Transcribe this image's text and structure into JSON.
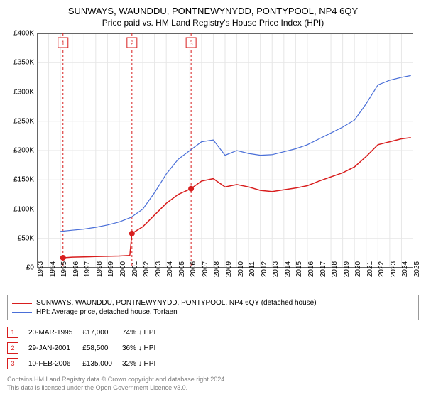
{
  "title": "SUNWAYS, WAUNDDU, PONTNEWYNYDD, PONTYPOOL, NP4 6QY",
  "subtitle": "Price paid vs. HM Land Registry's House Price Index (HPI)",
  "chart": {
    "type": "line",
    "background_color": "#ffffff",
    "grid_color": "#e6e6e6",
    "axis_color": "#666666",
    "y": {
      "min": 0,
      "max": 400000,
      "step": 50000,
      "ticks": [
        "£0",
        "£50K",
        "£100K",
        "£150K",
        "£200K",
        "£250K",
        "£300K",
        "£350K",
        "£400K"
      ],
      "label_fontsize": 10
    },
    "x": {
      "min": 1993,
      "max": 2025,
      "step": 1,
      "ticks": [
        "1993",
        "1994",
        "1995",
        "1996",
        "1997",
        "1998",
        "1999",
        "2000",
        "2001",
        "2002",
        "2003",
        "2004",
        "2005",
        "2006",
        "2007",
        "2008",
        "2009",
        "2010",
        "2011",
        "2012",
        "2013",
        "2014",
        "2015",
        "2016",
        "2017",
        "2018",
        "2019",
        "2020",
        "2021",
        "2022",
        "2023",
        "2024",
        "2025"
      ],
      "label_fontsize": 10
    },
    "series": [
      {
        "name": "SUNWAYS, WAUNDDU, PONTNEWYNYDD, PONTYPOOL, NP4 6QY (detached house)",
        "color": "#d81e1e",
        "line_width": 1.5,
        "points": [
          [
            1995.22,
            17000
          ],
          [
            1996,
            18000
          ],
          [
            1997,
            18500
          ],
          [
            1998,
            19000
          ],
          [
            1999,
            19500
          ],
          [
            2000,
            20000
          ],
          [
            2000.9,
            21000
          ],
          [
            2001.08,
            58500
          ],
          [
            2002,
            70000
          ],
          [
            2003,
            90000
          ],
          [
            2004,
            110000
          ],
          [
            2005,
            125000
          ],
          [
            2006.11,
            135000
          ],
          [
            2007,
            148000
          ],
          [
            2008,
            152000
          ],
          [
            2009,
            138000
          ],
          [
            2010,
            142000
          ],
          [
            2011,
            138000
          ],
          [
            2012,
            132000
          ],
          [
            2013,
            130000
          ],
          [
            2014,
            133000
          ],
          [
            2015,
            136000
          ],
          [
            2016,
            140000
          ],
          [
            2017,
            148000
          ],
          [
            2018,
            155000
          ],
          [
            2019,
            162000
          ],
          [
            2020,
            172000
          ],
          [
            2021,
            190000
          ],
          [
            2022,
            210000
          ],
          [
            2023,
            215000
          ],
          [
            2024,
            220000
          ],
          [
            2024.8,
            222000
          ]
        ]
      },
      {
        "name": "HPI: Average price, detached house, Torfaen",
        "color": "#4a6fd8",
        "line_width": 1.2,
        "points": [
          [
            1995,
            62000
          ],
          [
            1996,
            64000
          ],
          [
            1997,
            66000
          ],
          [
            1998,
            69000
          ],
          [
            1999,
            73000
          ],
          [
            2000,
            78000
          ],
          [
            2001,
            86000
          ],
          [
            2002,
            100000
          ],
          [
            2003,
            128000
          ],
          [
            2004,
            160000
          ],
          [
            2005,
            185000
          ],
          [
            2006,
            200000
          ],
          [
            2007,
            215000
          ],
          [
            2008,
            218000
          ],
          [
            2009,
            192000
          ],
          [
            2010,
            200000
          ],
          [
            2011,
            195000
          ],
          [
            2012,
            192000
          ],
          [
            2013,
            193000
          ],
          [
            2014,
            198000
          ],
          [
            2015,
            203000
          ],
          [
            2016,
            210000
          ],
          [
            2017,
            220000
          ],
          [
            2018,
            230000
          ],
          [
            2019,
            240000
          ],
          [
            2020,
            252000
          ],
          [
            2021,
            280000
          ],
          [
            2022,
            312000
          ],
          [
            2023,
            320000
          ],
          [
            2024,
            325000
          ],
          [
            2024.8,
            328000
          ]
        ]
      }
    ],
    "sale_markers": [
      {
        "n": "1",
        "year": 1995.22,
        "price": 17000,
        "date": "20-MAR-1995",
        "price_label": "£17,000",
        "delta": "74% ↓ HPI",
        "color": "#d81e1e"
      },
      {
        "n": "2",
        "year": 2001.08,
        "price": 58500,
        "date": "29-JAN-2001",
        "price_label": "£58,500",
        "delta": "36% ↓ HPI",
        "color": "#d81e1e"
      },
      {
        "n": "3",
        "year": 2006.11,
        "price": 135000,
        "date": "10-FEB-2006",
        "price_label": "£135,000",
        "delta": "32% ↓ HPI",
        "color": "#d81e1e"
      }
    ]
  },
  "legend": [
    {
      "label": "SUNWAYS, WAUNDDU, PONTNEWYNYDD, PONTYPOOL, NP4 6QY (detached house)",
      "color": "#d81e1e"
    },
    {
      "label": "HPI: Average price, detached house, Torfaen",
      "color": "#4a6fd8"
    }
  ],
  "footnote_line1": "Contains HM Land Registry data © Crown copyright and database right 2024.",
  "footnote_line2": "This data is licensed under the Open Government Licence v3.0."
}
